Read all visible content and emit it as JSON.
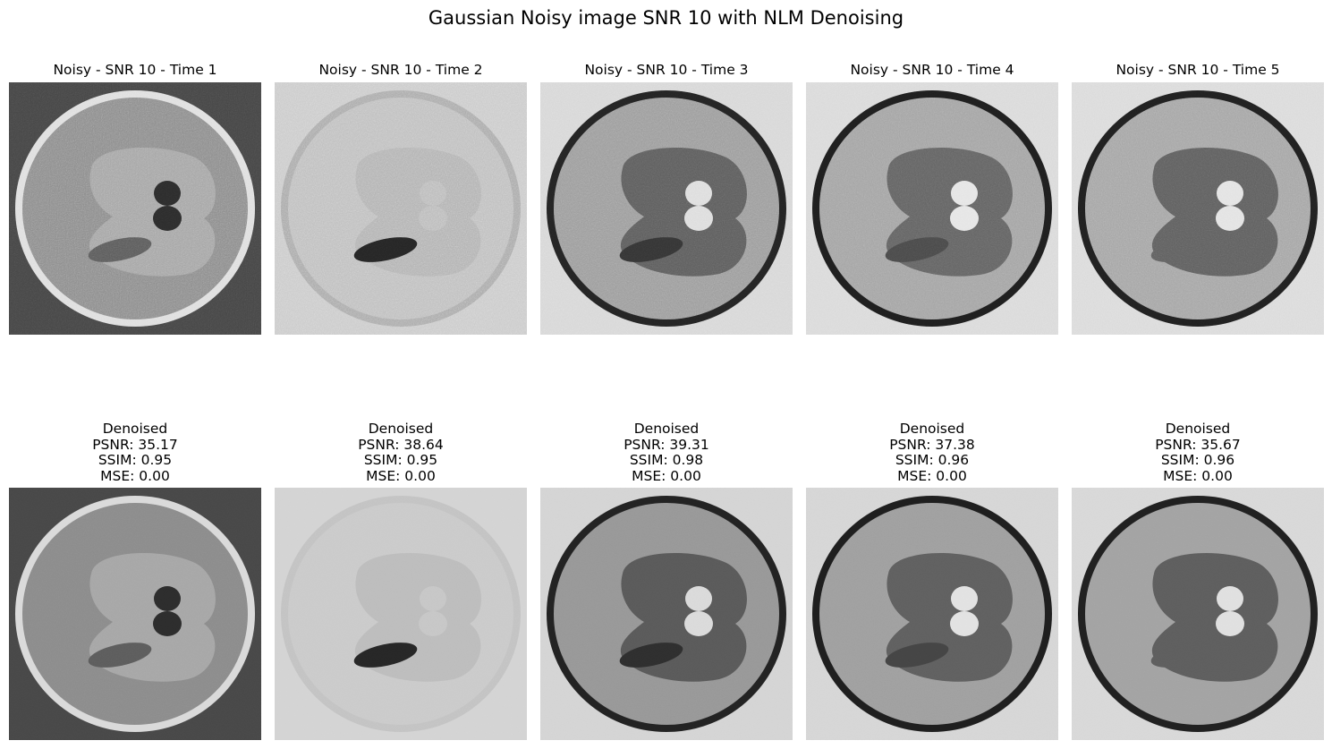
{
  "figure": {
    "title": "Gaussian Noisy image SNR 10 with NLM Denoising"
  },
  "noisy_row": [
    {
      "title": "Noisy - SNR 10 - Time 1",
      "background": "#444444",
      "ring": "#dddddd",
      "body": "#8a8a8a",
      "lobes": "#a3a3a3",
      "small_blob": "#2a2a2a",
      "ellipse": "#5a5a5a",
      "noise": 0.55
    },
    {
      "title": "Noisy - SNR 10 - Time 2",
      "background": "#c9c9c9",
      "ring": "#a8a8a8",
      "body": "#bdbdbd",
      "lobes": "#b0b0b0",
      "small_blob": "#b9b9b9",
      "ellipse": "#232323",
      "noise": 0.65
    },
    {
      "title": "Noisy - SNR 10 - Time 3",
      "background": "#d6d6d6",
      "ring": "#222222",
      "body": "#9a9a9a",
      "lobes": "#5c5c5c",
      "small_blob": "#dcdcdc",
      "ellipse": "#333333",
      "noise": 0.5
    },
    {
      "title": "Noisy - SNR 10 - Time 4",
      "background": "#d9d9d9",
      "ring": "#1d1d1d",
      "body": "#a2a2a2",
      "lobes": "#626262",
      "small_blob": "#e4e4e4",
      "ellipse": "#484848",
      "noise": 0.45
    },
    {
      "title": "Noisy - SNR 10 - Time 5",
      "background": "#dadada",
      "ring": "#1f1f1f",
      "body": "#a4a4a4",
      "lobes": "#5e5e5e",
      "small_blob": "#e2e2e2",
      "ellipse": "#5e5e5e",
      "noise": 0.45
    }
  ],
  "denoised_row": [
    {
      "label": "Denoised",
      "psnr": "PSNR: 35.17",
      "ssim": "SSIM: 0.95",
      "mse": "MSE: 0.00",
      "background": "#474747",
      "ring": "#d9d9d9",
      "body": "#8b8b8b",
      "lobes": "#a6a6a6",
      "small_blob": "#2c2c2c",
      "ellipse": "#5c5c5c",
      "noise": 0.12
    },
    {
      "label": "Denoised",
      "psnr": "PSNR: 38.64",
      "ssim": "SSIM: 0.95",
      "mse": "MSE: 0.00",
      "background": "#d3d3d3",
      "ring": "#c3c3c3",
      "body": "#cacaca",
      "lobes": "#bcbcbc",
      "small_blob": "#c6c6c6",
      "ellipse": "#262626",
      "noise": 0.12
    },
    {
      "label": "Denoised",
      "psnr": "PSNR: 39.31",
      "ssim": "SSIM: 0.98",
      "mse": "MSE: 0.00",
      "background": "#d4d4d4",
      "ring": "#222222",
      "body": "#979797",
      "lobes": "#595959",
      "small_blob": "#dadada",
      "ellipse": "#2e2e2e",
      "noise": 0.1
    },
    {
      "label": "Denoised",
      "psnr": "PSNR: 37.38",
      "ssim": "SSIM: 0.96",
      "mse": "MSE: 0.00",
      "background": "#d6d6d6",
      "ring": "#1e1e1e",
      "body": "#9f9f9f",
      "lobes": "#5f5f5f",
      "small_blob": "#e2e2e2",
      "ellipse": "#444444",
      "noise": 0.1
    },
    {
      "label": "Denoised",
      "psnr": "PSNR: 35.67",
      "ssim": "SSIM: 0.96",
      "mse": "MSE: 0.00",
      "background": "#d8d8d8",
      "ring": "#202020",
      "body": "#a2a2a2",
      "lobes": "#5d5d5d",
      "small_blob": "#e0e0e0",
      "ellipse": "#5d5d5d",
      "noise": 0.1
    }
  ]
}
